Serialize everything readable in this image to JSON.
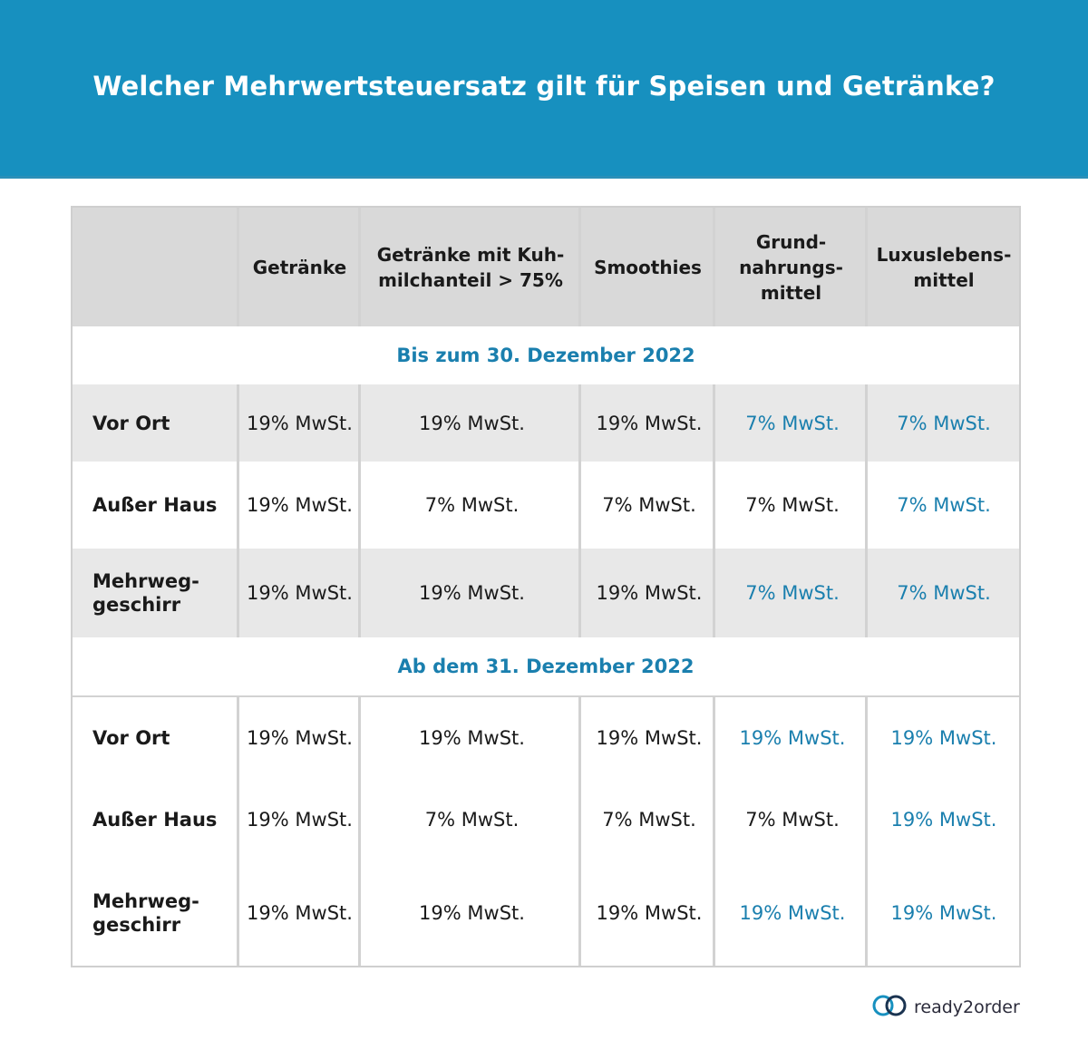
{
  "title": "Welcher Mehrwertsteuersatz gilt für Speisen und Getränke?",
  "columns": [
    "",
    "Getränke",
    "Getränke mit Kuh-\nmilchanteil > 75%",
    "Smoothies",
    "Grund-\nnahrungs-\nmittel",
    "Luxuslebens-\nmittel"
  ],
  "sections": [
    {
      "heading": "Bis zum 30. Dezember 2022",
      "rows": [
        {
          "label": "Vor Ort",
          "values": [
            "19% MwSt.",
            "19% MwSt.",
            "19% MwSt.",
            "7% MwSt.",
            "7% MwSt."
          ]
        },
        {
          "label": "Außer Haus",
          "values": [
            "19% MwSt.",
            "7% MwSt.",
            "7% MwSt.",
            "7% MwSt.",
            "7% MwSt."
          ]
        },
        {
          "label": "Mehrweg-\ngeschirr",
          "values": [
            "19% MwSt.",
            "19% MwSt.",
            "19% MwSt.",
            "7% MwSt.",
            "7% MwSt."
          ]
        }
      ]
    },
    {
      "heading": "Ab dem 31. Dezember 2022",
      "rows": [
        {
          "label": "Vor Ort",
          "values": [
            "19% MwSt.",
            "19% MwSt.",
            "19% MwSt.",
            "19% MwSt.",
            "19% MwSt."
          ]
        },
        {
          "label": "Außer Haus",
          "values": [
            "19% MwSt.",
            "7% MwSt.",
            "7% MwSt.",
            "7% MwSt.",
            "19% MwSt."
          ]
        },
        {
          "label": "Mehrweg-\ngeschirr",
          "values": [
            "19% MwSt.",
            "19% MwSt.",
            "19% MwSt.",
            "19% MwSt.",
            "19% MwSt."
          ]
        }
      ]
    }
  ],
  "colors": {
    "banner": "#1790bf",
    "accent_text": "#1a7fae",
    "header_bg": "#d9d9d9",
    "row_shade": "#e8e8e8"
  },
  "logo": {
    "text": "ready2order",
    "icon": "ready2order-logo-icon"
  }
}
